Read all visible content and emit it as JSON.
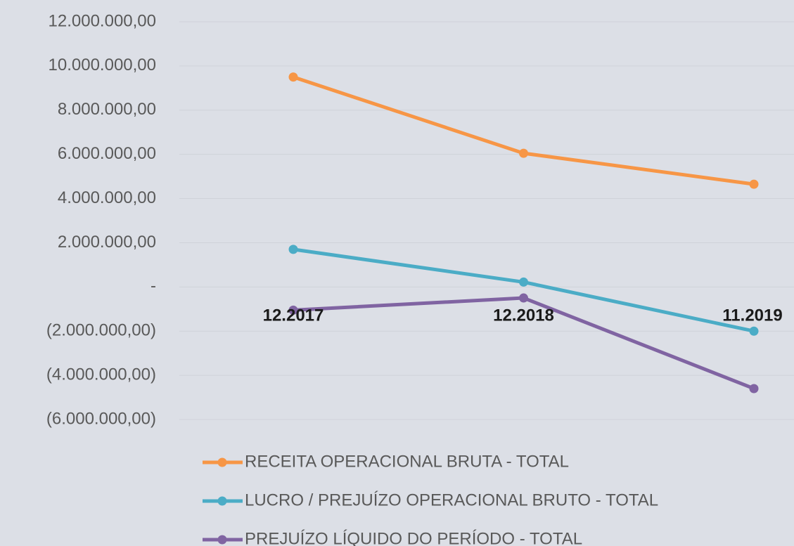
{
  "chart_data": {
    "type": "line",
    "categories": [
      "12.2017",
      "12.2018",
      "11.2019"
    ],
    "series": [
      {
        "name": "RECEITA OPERACIONAL BRUTA - TOTAL",
        "color": "#f79646",
        "values": [
          9500000,
          6050000,
          4650000
        ]
      },
      {
        "name": "LUCRO / PREJUÍZO OPERACIONAL BRUTO - TOTAL",
        "color": "#4bacc6",
        "values": [
          1700000,
          220000,
          -2000000
        ]
      },
      {
        "name": "PREJUÍZO LÍQUIDO DO PERÍODO - TOTAL",
        "color": "#8064a2",
        "values": [
          -1050000,
          -500000,
          -4600000
        ]
      }
    ],
    "ylim": [
      -6000000,
      12000000
    ],
    "yticks": [
      {
        "value": 12000000,
        "label": "12.000.000,00"
      },
      {
        "value": 10000000,
        "label": "10.000.000,00"
      },
      {
        "value": 8000000,
        "label": "8.000.000,00"
      },
      {
        "value": 6000000,
        "label": "6.000.000,00"
      },
      {
        "value": 4000000,
        "label": "4.000.000,00"
      },
      {
        "value": 2000000,
        "label": "2.000.000,00"
      },
      {
        "value": 0,
        "label": "-"
      },
      {
        "value": -2000000,
        "label": "(2.000.000,00)"
      },
      {
        "value": -4000000,
        "label": "(4.000.000,00)"
      },
      {
        "value": -6000000,
        "label": "(6.000.000,00)"
      }
    ],
    "grid": true,
    "legend": "bottom"
  }
}
